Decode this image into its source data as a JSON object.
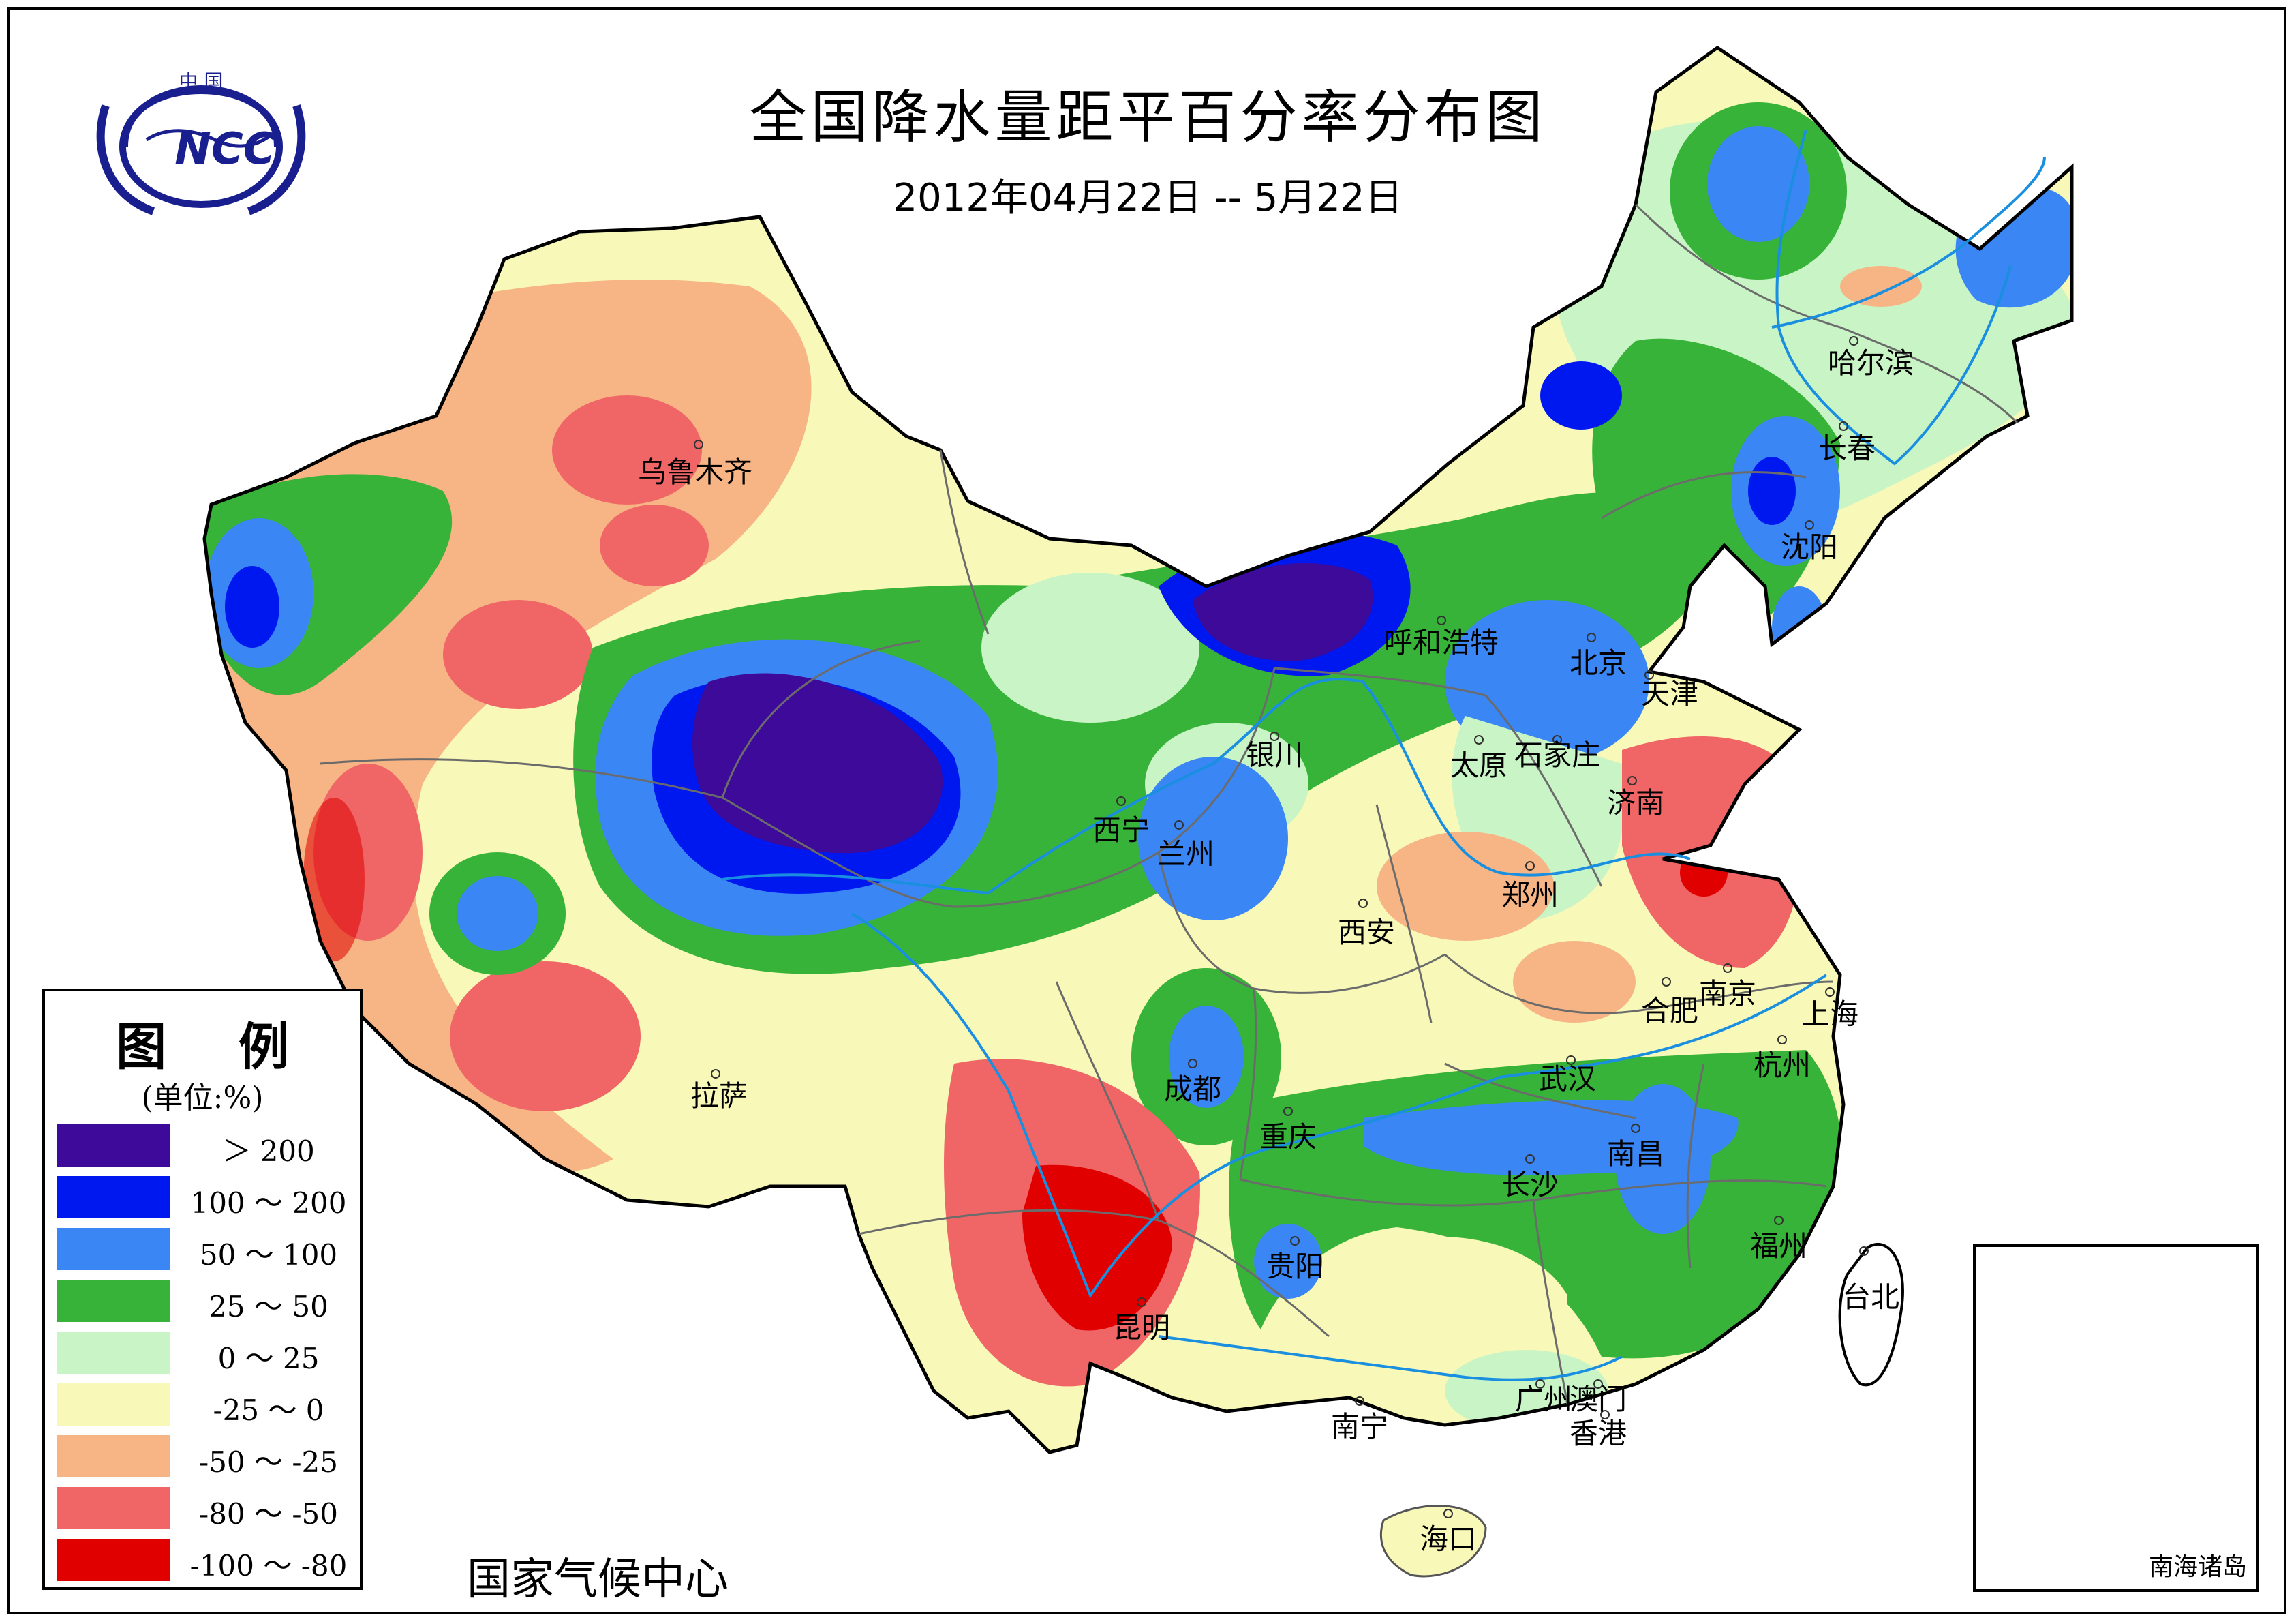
{
  "title": "全国降水量距平百分率分布图",
  "date_range": "2012年04月22日 -- 5月22日",
  "organization": "国家气候中心",
  "logo": {
    "text_top": "中国",
    "text_main": "NCC",
    "color": "#1a1f8f"
  },
  "legend": {
    "title": "图 例",
    "unit": "(单位:%)",
    "items": [
      {
        "label": "＞ 200",
        "color": "#3d0a99"
      },
      {
        "label": "100 ～ 200",
        "color": "#0018f0"
      },
      {
        "label": "50 ～ 100",
        "color": "#3a86f4"
      },
      {
        "label": "25 ～ 50",
        "color": "#37b339"
      },
      {
        "label": "0 ～ 25",
        "color": "#c9f4c6"
      },
      {
        "label": "-25 ～ 0",
        "color": "#f8f9b8"
      },
      {
        "label": "-50 ～ -25",
        "color": "#f7b484"
      },
      {
        "label": "-80 ～ -50",
        "color": "#f06666"
      },
      {
        "label": "-100 ～ -80",
        "color": "#e00000"
      }
    ]
  },
  "cities": [
    {
      "name": "乌鲁木齐"
    },
    {
      "name": "哈尔滨"
    },
    {
      "name": "长春"
    },
    {
      "name": "沈阳"
    },
    {
      "name": "呼和浩特"
    },
    {
      "name": "北京"
    },
    {
      "name": "天津"
    },
    {
      "name": "银川"
    },
    {
      "name": "太原"
    },
    {
      "name": "石家庄"
    },
    {
      "name": "济南"
    },
    {
      "name": "西宁"
    },
    {
      "name": "兰州"
    },
    {
      "name": "郑州"
    },
    {
      "name": "西安"
    },
    {
      "name": "合肥"
    },
    {
      "name": "南京"
    },
    {
      "name": "上海"
    },
    {
      "name": "杭州"
    },
    {
      "name": "成都"
    },
    {
      "name": "武汉"
    },
    {
      "name": "拉萨"
    },
    {
      "name": "重庆"
    },
    {
      "name": "南昌"
    },
    {
      "name": "长沙"
    },
    {
      "name": "贵阳"
    },
    {
      "name": "福州"
    },
    {
      "name": "台北"
    },
    {
      "name": "昆明"
    },
    {
      "name": "广州"
    },
    {
      "name": "澳门"
    },
    {
      "name": "香港"
    },
    {
      "name": "南宁"
    },
    {
      "name": "海口"
    }
  ],
  "inset": {
    "label": "南海诸岛"
  }
}
